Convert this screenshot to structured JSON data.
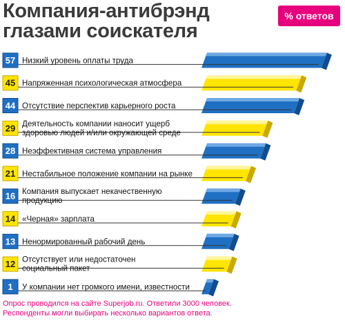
{
  "header": {
    "title_line1": "Компания-антибрэнд",
    "title_line2": "глазами соискателя",
    "badge": "% ответов"
  },
  "chart_data": {
    "type": "bar",
    "orientation": "horizontal",
    "unit": "%",
    "categories": [
      "Низкий уровень оплаты труда",
      "Напряженная психологическая атмосфера",
      "Отсутствие перспектив карьерного роста",
      "Деятельность компании наносит ущерб здоровью людей и/или окружающей среде",
      "Неэффективная система управления",
      "Нестабильное положение компании на рынке",
      "Компания выпускает некачественную продукцию",
      "«Черная» зарплата",
      "Ненормированный рабочий день",
      "Отсутствует или недостаточен социальный пакет",
      "У компании нет громкого имени, известности"
    ],
    "label_lines": [
      [
        "Низкий уровень оплаты труда"
      ],
      [
        "Напряженная психологическая атмосфера"
      ],
      [
        "Отсутствие перспектив карьерного роста"
      ],
      [
        "Деятельность компании наносит ущерб",
        "здоровью людей и/или окружающей среде"
      ],
      [
        "Неэффективная система управления"
      ],
      [
        "Нестабильное положение компании на рынке"
      ],
      [
        "Компания выпускает некачественную",
        "продукцию"
      ],
      [
        "«Черная» зарплата"
      ],
      [
        "Ненормированный рабочий день"
      ],
      [
        "Отсутствует или недостаточен",
        "социальный пакет"
      ],
      [
        "У компании нет громкого имени, известности"
      ]
    ],
    "values": [
      57,
      45,
      44,
      29,
      28,
      21,
      16,
      14,
      13,
      12,
      1
    ],
    "colors": [
      "blue",
      "yellow",
      "blue",
      "yellow",
      "blue",
      "yellow",
      "blue",
      "yellow",
      "blue",
      "yellow",
      "blue"
    ],
    "palette": {
      "blue": "#1f6fc3",
      "blue_light": "#6fa9e4",
      "blue_dark": "#124c8c",
      "yellow": "#ffe500",
      "yellow_light": "#fff59a",
      "yellow_dark": "#c9a800",
      "white": "#ffffff",
      "line": "#333333",
      "text": "#111111"
    },
    "xlim": [
      0,
      60
    ]
  },
  "footnote": {
    "line1": "Опрос проводился на сайте Superjob.ru. Ответили 3000 человек.",
    "line2": "Респонденты могли выбирать несколько вариантов ответа."
  }
}
